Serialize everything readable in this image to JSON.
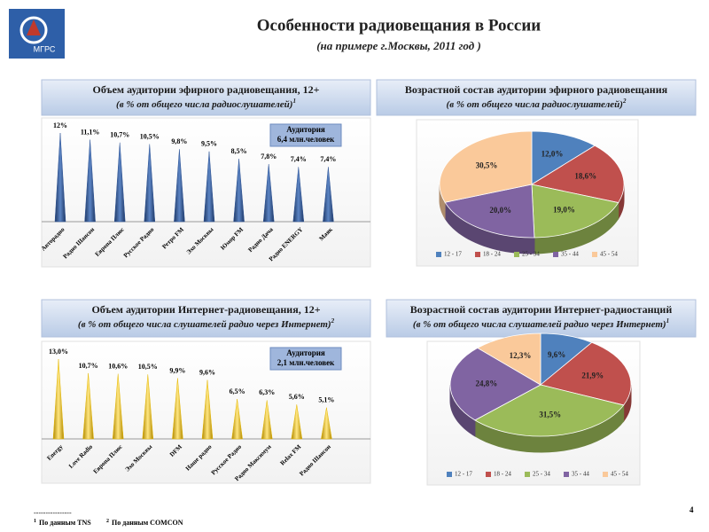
{
  "header": {
    "logo": "МГРС",
    "title": "Особенности радиовещания в России",
    "subtitle": "(на примере г.Москвы, 2011 год )"
  },
  "chart_data": [
    {
      "type": "bar",
      "title": "Объем аудитории эфирного радиовещания, 12+",
      "subtitle": "(в % от общего числа радиослушателей)",
      "note_ref": "1",
      "annotation": [
        "Аудитория",
        "6,4 млн.человек"
      ],
      "categories": [
        "Авторадио",
        "Радио Шансон",
        "Европа Плюс",
        "Русское Радио",
        "Ретро FM",
        "Эхо Москвы",
        "Юмор FM",
        "Радио Дача",
        "Радио ENERGY",
        "Маяк"
      ],
      "values": [
        12,
        11.1,
        10.7,
        10.5,
        9.8,
        9.5,
        8.5,
        7.8,
        7.4,
        7.4
      ],
      "value_labels": [
        "12%",
        "11,1%",
        "10,7%",
        "10,5%",
        "9,8%",
        "9,5%",
        "8,5%",
        "7,8%",
        "7,4%",
        "7,4%"
      ],
      "color": "#2f5597"
    },
    {
      "type": "pie",
      "title": "Возрастной состав аудитории эфирного радиовещания",
      "subtitle": "(в % от общего числа радиослушателей)",
      "note_ref": "2",
      "categories": [
        "12 - 17",
        "18 - 24",
        "25 - 34",
        "35 - 44",
        "45 - 54"
      ],
      "values": [
        12.0,
        18.6,
        19.0,
        20.0,
        30.5
      ],
      "value_labels": [
        "12,0%",
        "18,6%",
        "19,0%",
        "20,0%",
        "30,5%"
      ],
      "colors": [
        "#4f81bd",
        "#c0504d",
        "#9bbb59",
        "#8064a2",
        "#fac99a"
      ]
    },
    {
      "type": "bar",
      "title": "Объем аудитории Интернет-радиовещания, 12+",
      "subtitle": "(в % от общего числа слушателей радио через Интернет)",
      "note_ref": "2",
      "annotation": [
        "Аудитория",
        "2,1 млн.человек"
      ],
      "categories": [
        "Energy",
        "Love Radio",
        "Европа Плюс",
        "Эхо Москвы",
        "DFM",
        "Наше радио",
        "Русское Радио",
        "Радио Максимум",
        "Relax FM",
        "Радио Шансон"
      ],
      "values": [
        13.0,
        10.7,
        10.6,
        10.5,
        9.9,
        9.6,
        6.5,
        6.3,
        5.6,
        5.1
      ],
      "value_labels": [
        "13,0%",
        "10,7%",
        "10,6%",
        "10,5%",
        "9,9%",
        "9,6%",
        "6,5%",
        "6,3%",
        "5,6%",
        "5,1%"
      ],
      "color": "#e6b800"
    },
    {
      "type": "pie",
      "title": "Возрастной состав аудитории Интернет-радиостанций",
      "subtitle": "(в % от общего числа слушателей радио через Интернет)",
      "note_ref": "1",
      "categories": [
        "12 - 17",
        "18 - 24",
        "25 - 34",
        "35 - 44",
        "45 - 54"
      ],
      "values": [
        9.6,
        21.9,
        31.5,
        24.8,
        12.3
      ],
      "value_labels": [
        "9,6%",
        "21,9%",
        "31,5%",
        "24,8%",
        "12,3%"
      ],
      "colors": [
        "#4f81bd",
        "#c0504d",
        "#9bbb59",
        "#8064a2",
        "#fac99a"
      ]
    }
  ],
  "footer": {
    "rule": "----------------",
    "notes": [
      {
        "mark": "1",
        "text": "По данным TNS"
      },
      {
        "mark": "2",
        "text": "По данным COMCON"
      }
    ],
    "page": "4"
  }
}
